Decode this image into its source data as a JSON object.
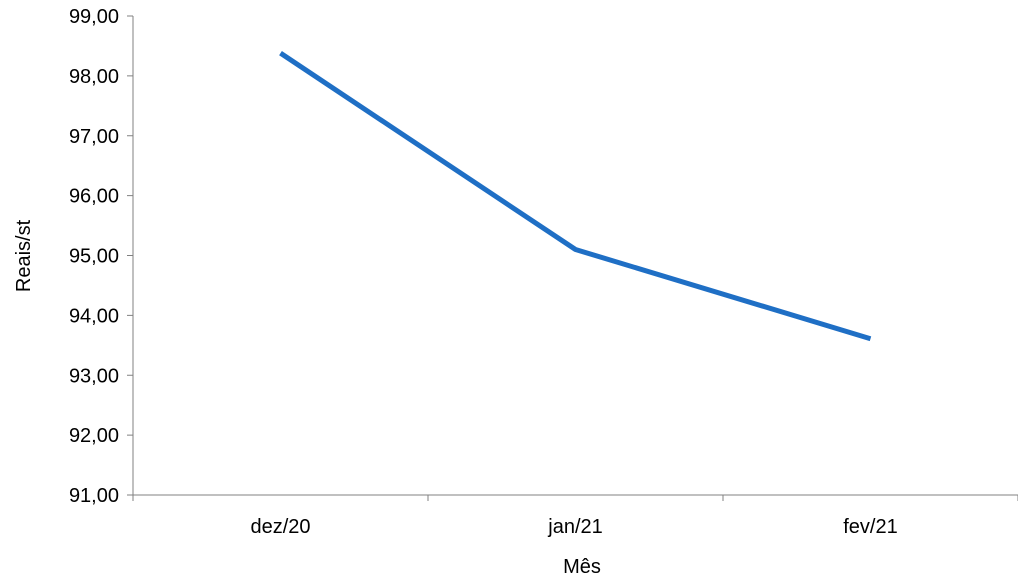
{
  "chart_data": {
    "type": "line",
    "title": "",
    "xlabel": "Mês",
    "ylabel": "Reais/st",
    "categories": [
      "dez/20",
      "jan/21",
      "fev/21"
    ],
    "series": [
      {
        "values": [
          98.38,
          95.1,
          93.61
        ],
        "color": "#1F6FC5"
      }
    ],
    "ylim": [
      91,
      99
    ],
    "y_ticks": [
      "91,00",
      "92,00",
      "93,00",
      "94,00",
      "95,00",
      "96,00",
      "97,00",
      "98,00",
      "99,00"
    ],
    "grid": false,
    "legend": "none"
  }
}
